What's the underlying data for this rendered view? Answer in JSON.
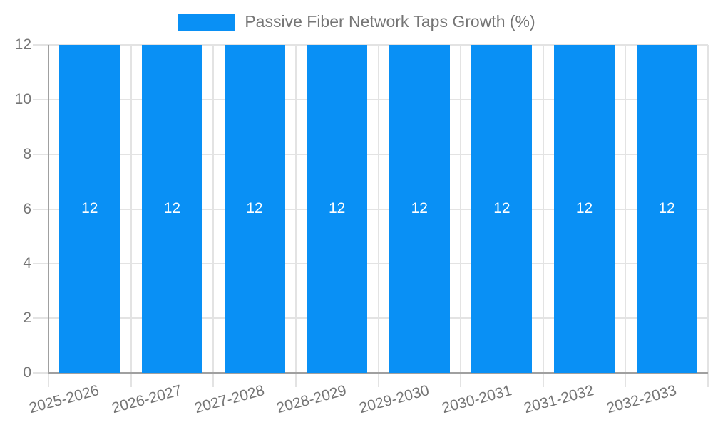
{
  "chart_data": {
    "type": "bar",
    "title": "Passive Fiber Network Taps Growth (%)",
    "categories": [
      "2025-2026",
      "2026-2027",
      "2027-2028",
      "2028-2029",
      "2029-2030",
      "2030-2031",
      "2031-2032",
      "2032-2033"
    ],
    "series": [
      {
        "name": "Passive Fiber Network Taps Growth (%)",
        "color": "#0990f5",
        "values": [
          12,
          12,
          12,
          12,
          12,
          12,
          12,
          12
        ]
      }
    ],
    "bar_value_labels": [
      "12",
      "12",
      "12",
      "12",
      "12",
      "12",
      "12",
      "12"
    ],
    "xlabel": "",
    "ylabel": "",
    "ylim": [
      0,
      12
    ],
    "yticks": [
      0,
      2,
      4,
      6,
      8,
      10,
      12
    ],
    "grid": true,
    "legend_position": "top-center",
    "bar_label_position": "middle",
    "colors": {
      "bar": "#0990f5",
      "bar_label": "#ffffff",
      "axis_text": "#757575",
      "legend_text": "#757575",
      "gridline": "#e3e3e3",
      "axis_line": "#a0a0a0",
      "background": "#ffffff"
    }
  }
}
